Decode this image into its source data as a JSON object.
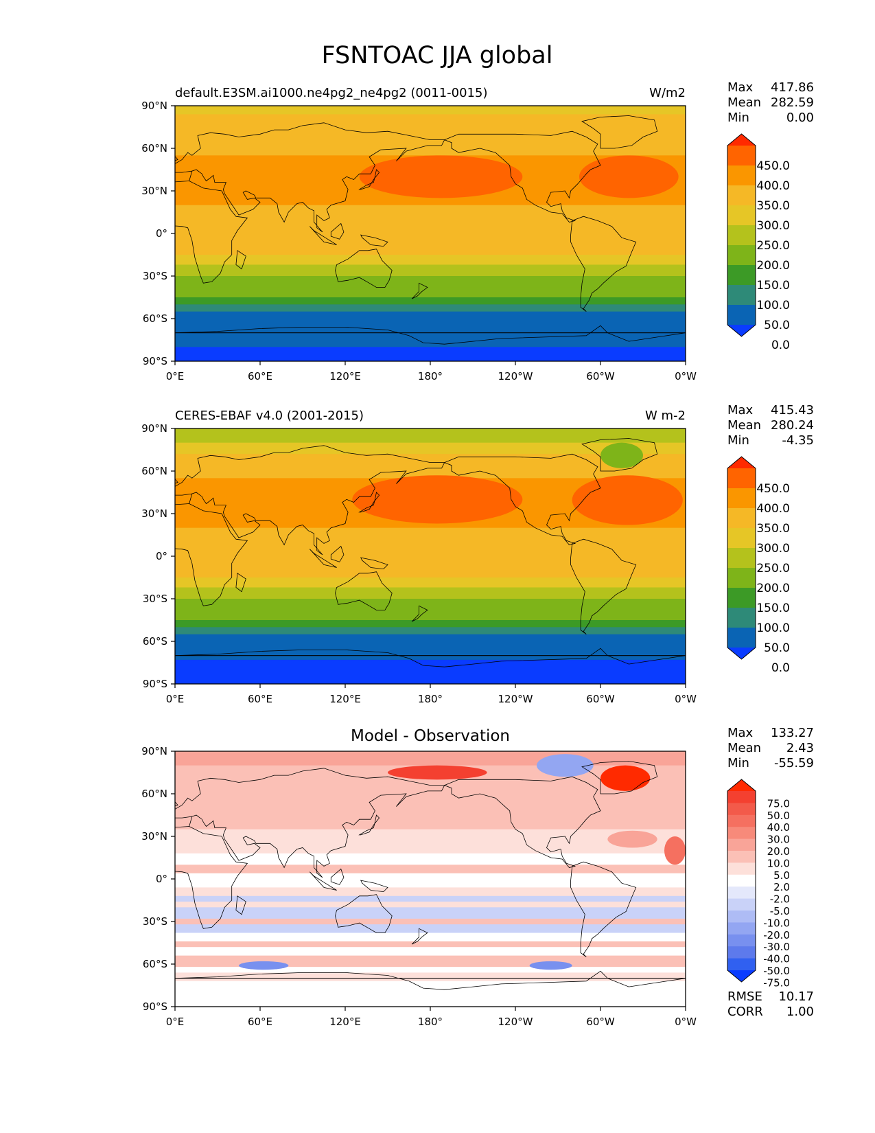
{
  "figure": {
    "title": "FSNTOAC JJA global"
  },
  "axes": {
    "lat_ticks": [
      "90°N",
      "60°N",
      "30°N",
      "0°",
      "30°S",
      "60°S",
      "90°S"
    ],
    "lon_ticks": [
      "0°E",
      "60°E",
      "120°E",
      "180°",
      "120°W",
      "60°W",
      "0°W"
    ]
  },
  "chart_data": [
    {
      "type": "heatmap",
      "title": "default.E3SM.ai1000.ne4pg2_ne4pg2 (0011-0015)",
      "units": "W/m2",
      "stats": [
        {
          "label": "Max",
          "value": "417.86"
        },
        {
          "label": "Mean",
          "value": "282.59"
        },
        {
          "label": "Min",
          "value": "0.00"
        }
      ],
      "colorbar": {
        "tick_labels": [
          "450.0",
          "400.0",
          "350.0",
          "300.0",
          "250.0",
          "200.0",
          "150.0",
          "100.0",
          "50.0",
          "0.0"
        ],
        "colors": [
          "#ff2a00",
          "#ff6400",
          "#fa9600",
          "#f5b826",
          "#e6c626",
          "#b4c21c",
          "#7eb419",
          "#3c9a26",
          "#2e8a78",
          "#0a64b4",
          "#0a3cff"
        ]
      },
      "bands_lat": [
        {
          "lat": [
            84,
            90
          ],
          "value": 260
        },
        {
          "lat": [
            72,
            84
          ],
          "value": 300
        },
        {
          "lat": [
            55,
            72
          ],
          "value": 340
        },
        {
          "lat": [
            20,
            55
          ],
          "value": 360
        },
        {
          "lat": [
            -10,
            20
          ],
          "value": 330
        },
        {
          "lat": [
            -15,
            -10
          ],
          "value": 310
        },
        {
          "lat": [
            -22,
            -15
          ],
          "value": 280
        },
        {
          "lat": [
            -30,
            -22
          ],
          "value": 240
        },
        {
          "lat": [
            -38,
            -30
          ],
          "value": 190
        },
        {
          "lat": [
            -45,
            -38
          ],
          "value": 160
        },
        {
          "lat": [
            -50,
            -45
          ],
          "value": 120
        },
        {
          "lat": [
            -55,
            -50
          ],
          "value": 80
        },
        {
          "lat": [
            -80,
            -55
          ],
          "value": 40
        },
        {
          "lat": [
            -90,
            -80
          ],
          "value": -10
        }
      ],
      "ocean_highlights": [
        {
          "name": "North Pacific",
          "lat": [
            25,
            55
          ],
          "lon": [
            130,
            245
          ],
          "value": 420
        },
        {
          "name": "North Atlantic",
          "lat": [
            25,
            55
          ],
          "lon": [
            285,
            355
          ],
          "value": 420
        }
      ]
    },
    {
      "type": "heatmap",
      "title": "CERES-EBAF v4.0 (2001-2015)",
      "units": "W m-2",
      "stats": [
        {
          "label": "Max",
          "value": "415.43"
        },
        {
          "label": "Mean",
          "value": "280.24"
        },
        {
          "label": "Min",
          "value": "-4.35"
        }
      ],
      "colorbar": {
        "tick_labels": [
          "450.0",
          "400.0",
          "350.0",
          "300.0",
          "250.0",
          "200.0",
          "150.0",
          "100.0",
          "50.0",
          "0.0"
        ],
        "colors": [
          "#ff2a00",
          "#ff6400",
          "#fa9600",
          "#f5b826",
          "#e6c626",
          "#b4c21c",
          "#7eb419",
          "#3c9a26",
          "#2e8a78",
          "#0a64b4",
          "#0a3cff"
        ]
      },
      "bands_lat": [
        {
          "lat": [
            80,
            90
          ],
          "value": 240
        },
        {
          "lat": [
            72,
            80
          ],
          "value": 290
        },
        {
          "lat": [
            55,
            72
          ],
          "value": 340
        },
        {
          "lat": [
            20,
            55
          ],
          "value": 360
        },
        {
          "lat": [
            -10,
            20
          ],
          "value": 330
        },
        {
          "lat": [
            -15,
            -10
          ],
          "value": 305
        },
        {
          "lat": [
            -22,
            -15
          ],
          "value": 275
        },
        {
          "lat": [
            -30,
            -22
          ],
          "value": 240
        },
        {
          "lat": [
            -38,
            -30
          ],
          "value": 190
        },
        {
          "lat": [
            -45,
            -38
          ],
          "value": 160
        },
        {
          "lat": [
            -50,
            -45
          ],
          "value": 120
        },
        {
          "lat": [
            -55,
            -50
          ],
          "value": 80
        },
        {
          "lat": [
            -73,
            -55
          ],
          "value": 40
        },
        {
          "lat": [
            -90,
            -73
          ],
          "value": -10
        }
      ],
      "ocean_highlights": [
        {
          "name": "North Pacific",
          "lat": [
            23,
            57
          ],
          "lon": [
            125,
            245
          ],
          "value": 420
        },
        {
          "name": "North Atlantic",
          "lat": [
            22,
            57
          ],
          "lon": [
            280,
            358
          ],
          "value": 420
        },
        {
          "name": "Greenland",
          "lat": [
            62,
            80
          ],
          "lon": [
            300,
            330
          ],
          "value": 160
        }
      ]
    },
    {
      "type": "heatmap",
      "title": "Model - Observation",
      "units": "",
      "stats": [
        {
          "label": "Max",
          "value": "133.27"
        },
        {
          "label": "Mean",
          "value": "2.43"
        },
        {
          "label": "Min",
          "value": "-55.59"
        }
      ],
      "extra_stats": [
        {
          "label": "RMSE",
          "value": "10.17"
        },
        {
          "label": "CORR",
          "value": "1.00"
        }
      ],
      "colorbar": {
        "tick_labels": [
          "75.0",
          "50.0",
          "40.0",
          "30.0",
          "20.0",
          "10.0",
          "5.0",
          "2.0",
          "-2.0",
          "-5.0",
          "-10.0",
          "-20.0",
          "-30.0",
          "-40.0",
          "-50.0",
          "-75.0"
        ],
        "colors": [
          "#ff2a00",
          "#f44030",
          "#f35a4a",
          "#f57060",
          "#f78a7a",
          "#f9a498",
          "#fbc0b6",
          "#fde0da",
          "#ffffff",
          "#e4e8fb",
          "#c9d2f8",
          "#aebcf5",
          "#93a6f2",
          "#7890ef",
          "#5d7aec",
          "#3060f0",
          "#0a3cff"
        ]
      },
      "bands_lat": [
        {
          "lat": [
            80,
            90
          ],
          "value": 12
        },
        {
          "lat": [
            70,
            80
          ],
          "value": 6
        },
        {
          "lat": [
            55,
            70
          ],
          "value": 8
        },
        {
          "lat": [
            35,
            55
          ],
          "value": 6
        },
        {
          "lat": [
            18,
            35
          ],
          "value": 3
        },
        {
          "lat": [
            10,
            18
          ],
          "value": 0
        },
        {
          "lat": [
            4,
            10
          ],
          "value": 6
        },
        {
          "lat": [
            -6,
            4
          ],
          "value": 0
        },
        {
          "lat": [
            -12,
            -6
          ],
          "value": 4
        },
        {
          "lat": [
            -16,
            -12
          ],
          "value": -6
        },
        {
          "lat": [
            -20,
            -16
          ],
          "value": 4
        },
        {
          "lat": [
            -28,
            -20
          ],
          "value": -7
        },
        {
          "lat": [
            -32,
            -28
          ],
          "value": 6
        },
        {
          "lat": [
            -38,
            -32
          ],
          "value": -6
        },
        {
          "lat": [
            -44,
            -38
          ],
          "value": 0
        },
        {
          "lat": [
            -48,
            -44
          ],
          "value": 8
        },
        {
          "lat": [
            -54,
            -48
          ],
          "value": 0
        },
        {
          "lat": [
            -62,
            -54
          ],
          "value": 6
        },
        {
          "lat": [
            -66,
            -62
          ],
          "value": 0
        },
        {
          "lat": [
            -72,
            -66
          ],
          "value": 4
        },
        {
          "lat": [
            -90,
            -72
          ],
          "value": 0
        }
      ],
      "ocean_highlights": [
        {
          "name": "Arctic Siberia",
          "lat": [
            70,
            80
          ],
          "lon": [
            150,
            220
          ],
          "value": 60
        },
        {
          "name": "Greenland",
          "lat": [
            62,
            80
          ],
          "lon": [
            300,
            335
          ],
          "value": 80
        },
        {
          "name": "Canadian Arctic",
          "lat": [
            72,
            88
          ],
          "lon": [
            255,
            295
          ],
          "value": -25
        },
        {
          "name": "West Africa coast",
          "lat": [
            10,
            30
          ],
          "lon": [
            345,
            360
          ],
          "value": 30
        },
        {
          "name": "Southern Ocean A",
          "lat": [
            -64,
            -58
          ],
          "lon": [
            45,
            80
          ],
          "value": -40
        },
        {
          "name": "Southern Ocean B",
          "lat": [
            -64,
            -58
          ],
          "lon": [
            250,
            280
          ],
          "value": -40
        },
        {
          "name": "Mid Atlantic",
          "lat": [
            22,
            34
          ],
          "lon": [
            305,
            340
          ],
          "value": 12
        }
      ]
    }
  ]
}
